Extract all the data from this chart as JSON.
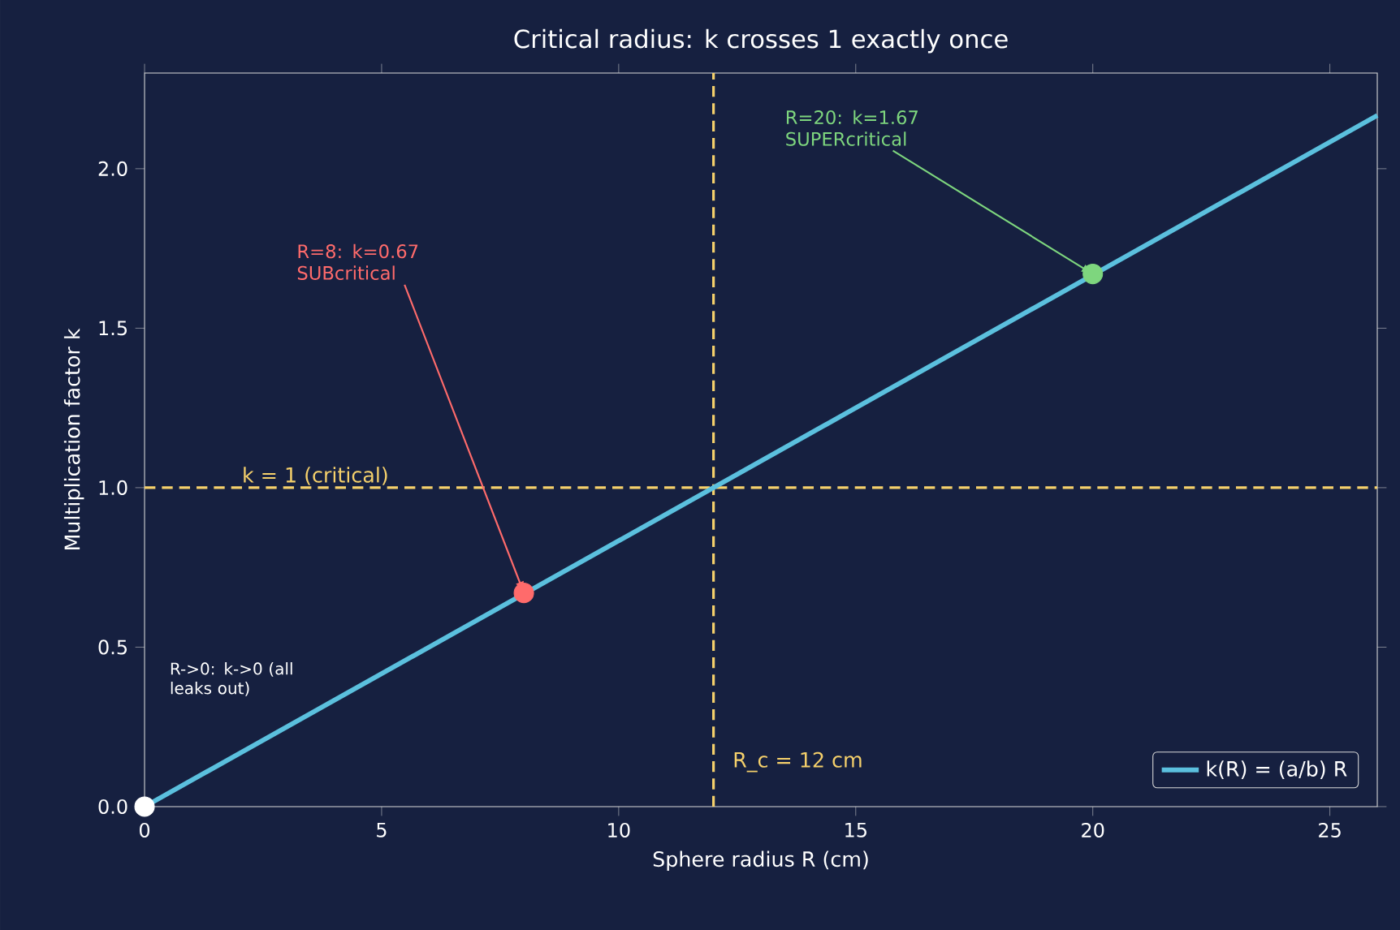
{
  "chart_data": {
    "type": "line",
    "title": "Critical radius: k crosses 1 exactly once",
    "xlabel": "Sphere radius R (cm)",
    "ylabel": "Multiplication factor k",
    "xlim": [
      0,
      26
    ],
    "ylim": [
      0,
      2.3
    ],
    "xticks": [
      0,
      5,
      10,
      15,
      20,
      25
    ],
    "yticks": [
      {
        "value": 0,
        "label": "0.0"
      },
      0.5,
      {
        "value": 1,
        "label": "1.0"
      },
      1.5,
      {
        "value": 2,
        "label": "2.0"
      }
    ],
    "series": [
      {
        "name": "k(R) = (a/b) R",
        "color": "#5bc0de",
        "x": [
          0,
          26
        ],
        "values": [
          0,
          2.167
        ]
      },
      {
        "type": "scatter",
        "x": [
          0,
          8,
          20
        ],
        "values": [
          0,
          0.67,
          1.67
        ],
        "colors": [
          "#ffffff",
          "#ff6b6b",
          "#7ed67e"
        ]
      }
    ],
    "ref_lines": [
      {
        "axis": "y",
        "value": 1,
        "label": "k = 1 (critical)",
        "color": "#f5d06b",
        "line_style": "dashed"
      },
      {
        "axis": "x",
        "value": 12,
        "label": "R_c = 12 cm",
        "color": "#f5d06b",
        "line_style": "dashed"
      }
    ],
    "annotations": [
      "R->0: k->0 (all leaks out)",
      {
        "text": "R=8: k=0.67 SUBcritical",
        "x": 8,
        "y": 0.67
      },
      {
        "text": "R=20: k=1.67 SUPERcritical",
        "x": 20,
        "y": 1.67
      }
    ],
    "legend": "bottom right",
    "grid": false,
    "line_style": "solid"
  }
}
